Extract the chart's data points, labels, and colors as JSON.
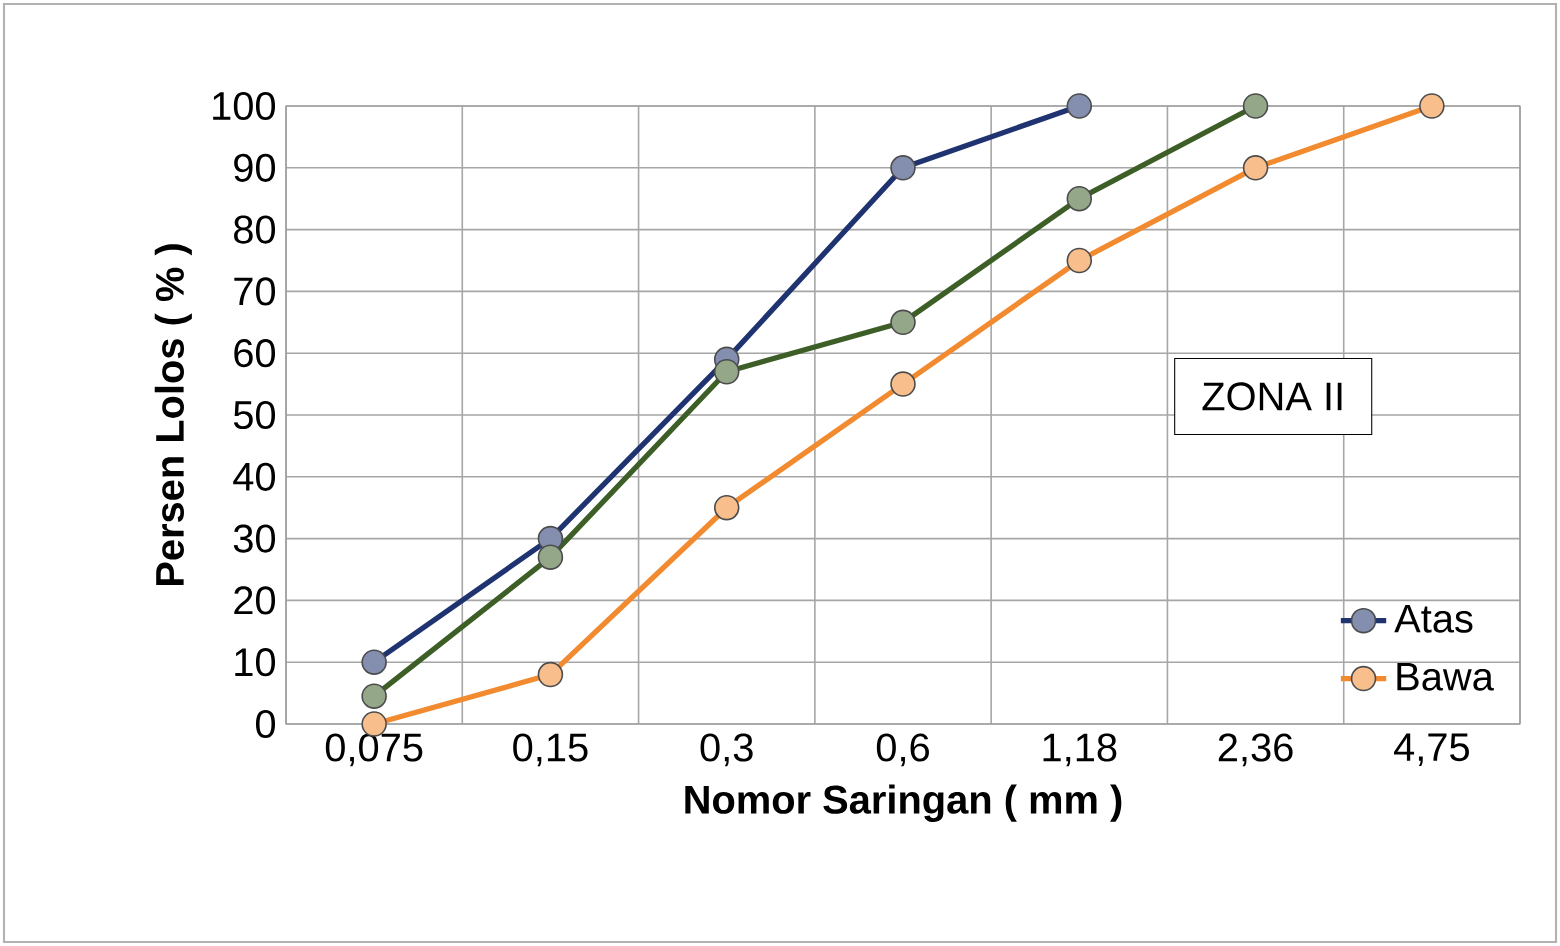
{
  "chart_data": {
    "type": "line",
    "xlabel": "Nomor Saringan ( mm )",
    "ylabel": "Persen Lolos ( % )",
    "categories": [
      "0,075",
      "0,15",
      "0,3",
      "0,6",
      "1,18",
      "2,36",
      "4,75"
    ],
    "series": [
      {
        "name": "Atas",
        "color": "#1f3370",
        "values": [
          10,
          30,
          59,
          90,
          100,
          null,
          null
        ]
      },
      {
        "color": "#3d5f27",
        "values": [
          4.5,
          27,
          57,
          65,
          85,
          100,
          null
        ]
      },
      {
        "name": "Bawa",
        "color": "#f28a30",
        "values": [
          0,
          8,
          35,
          55,
          75,
          90,
          100
        ]
      }
    ],
    "ylim": [
      0,
      100
    ],
    "yticks": [
      0,
      10,
      20,
      30,
      40,
      50,
      60,
      70,
      80,
      90,
      100
    ],
    "grid": true,
    "legend": "bottom right",
    "marker": "circle",
    "line_style": "solid",
    "annotations": [
      "ZONA II"
    ]
  }
}
